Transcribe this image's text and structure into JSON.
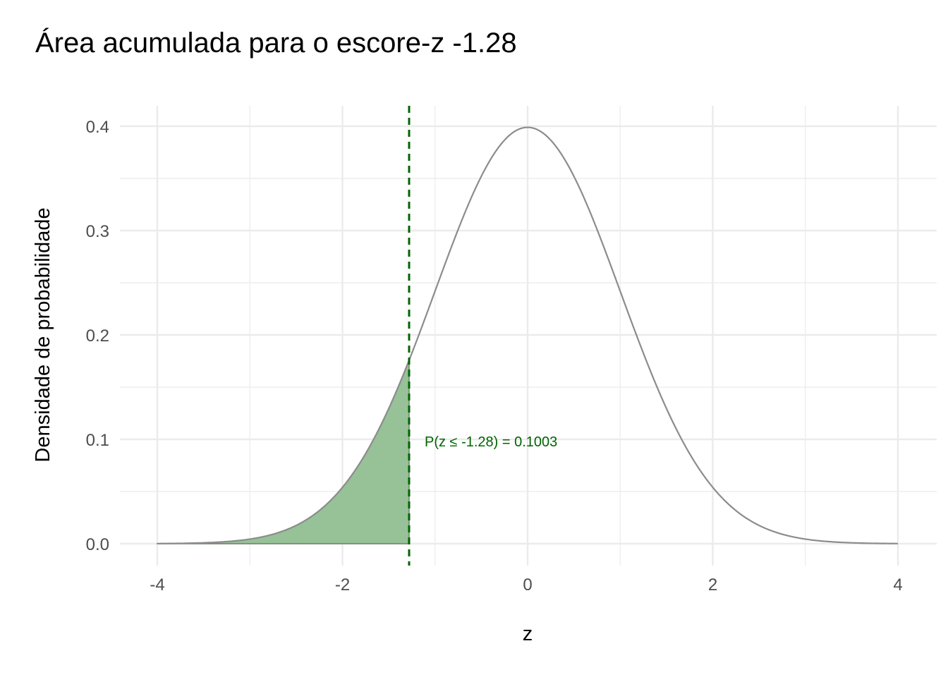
{
  "chart_data": {
    "type": "area",
    "title": "Área acumulada para o escore-z -1.28",
    "xlabel": "z",
    "ylabel": "Densidade de probabilidade",
    "xlim": [
      -4,
      4
    ],
    "ylim": [
      0,
      0.4
    ],
    "x_ticks": [
      "-4",
      "-2",
      "0",
      "2",
      "4"
    ],
    "y_ticks": [
      "0.0",
      "0.1",
      "0.2",
      "0.3",
      "0.4"
    ],
    "grid": true,
    "distribution": "standard normal",
    "z_score": -1.28,
    "shaded_region": "z <= -1.28",
    "cumulative_probability": 0.1003,
    "series": [
      {
        "x": [
          -4.0,
          -3.5,
          -3.0,
          -2.5,
          -2.0,
          -1.5,
          -1.28,
          -1.0,
          -0.5,
          0.0,
          0.5,
          1.0,
          1.5,
          2.0,
          2.5,
          3.0,
          3.5,
          4.0
        ],
        "values": [
          0.0001,
          0.0009,
          0.0044,
          0.0175,
          0.054,
          0.1295,
          0.1758,
          0.242,
          0.3521,
          0.3989,
          0.3521,
          0.242,
          0.1295,
          0.054,
          0.0175,
          0.0044,
          0.0009,
          0.0001
        ]
      }
    ],
    "annotation": "P(z ≤ -1.28) = 0.1003",
    "colors": {
      "curve": "#8c8c8c",
      "fill": "#97c197",
      "fill_outline": "#6e7f6e",
      "vline": "#006400",
      "annotation": "#006400",
      "grid": "#ebebeb",
      "tick_text": "#4d4d4d"
    }
  }
}
